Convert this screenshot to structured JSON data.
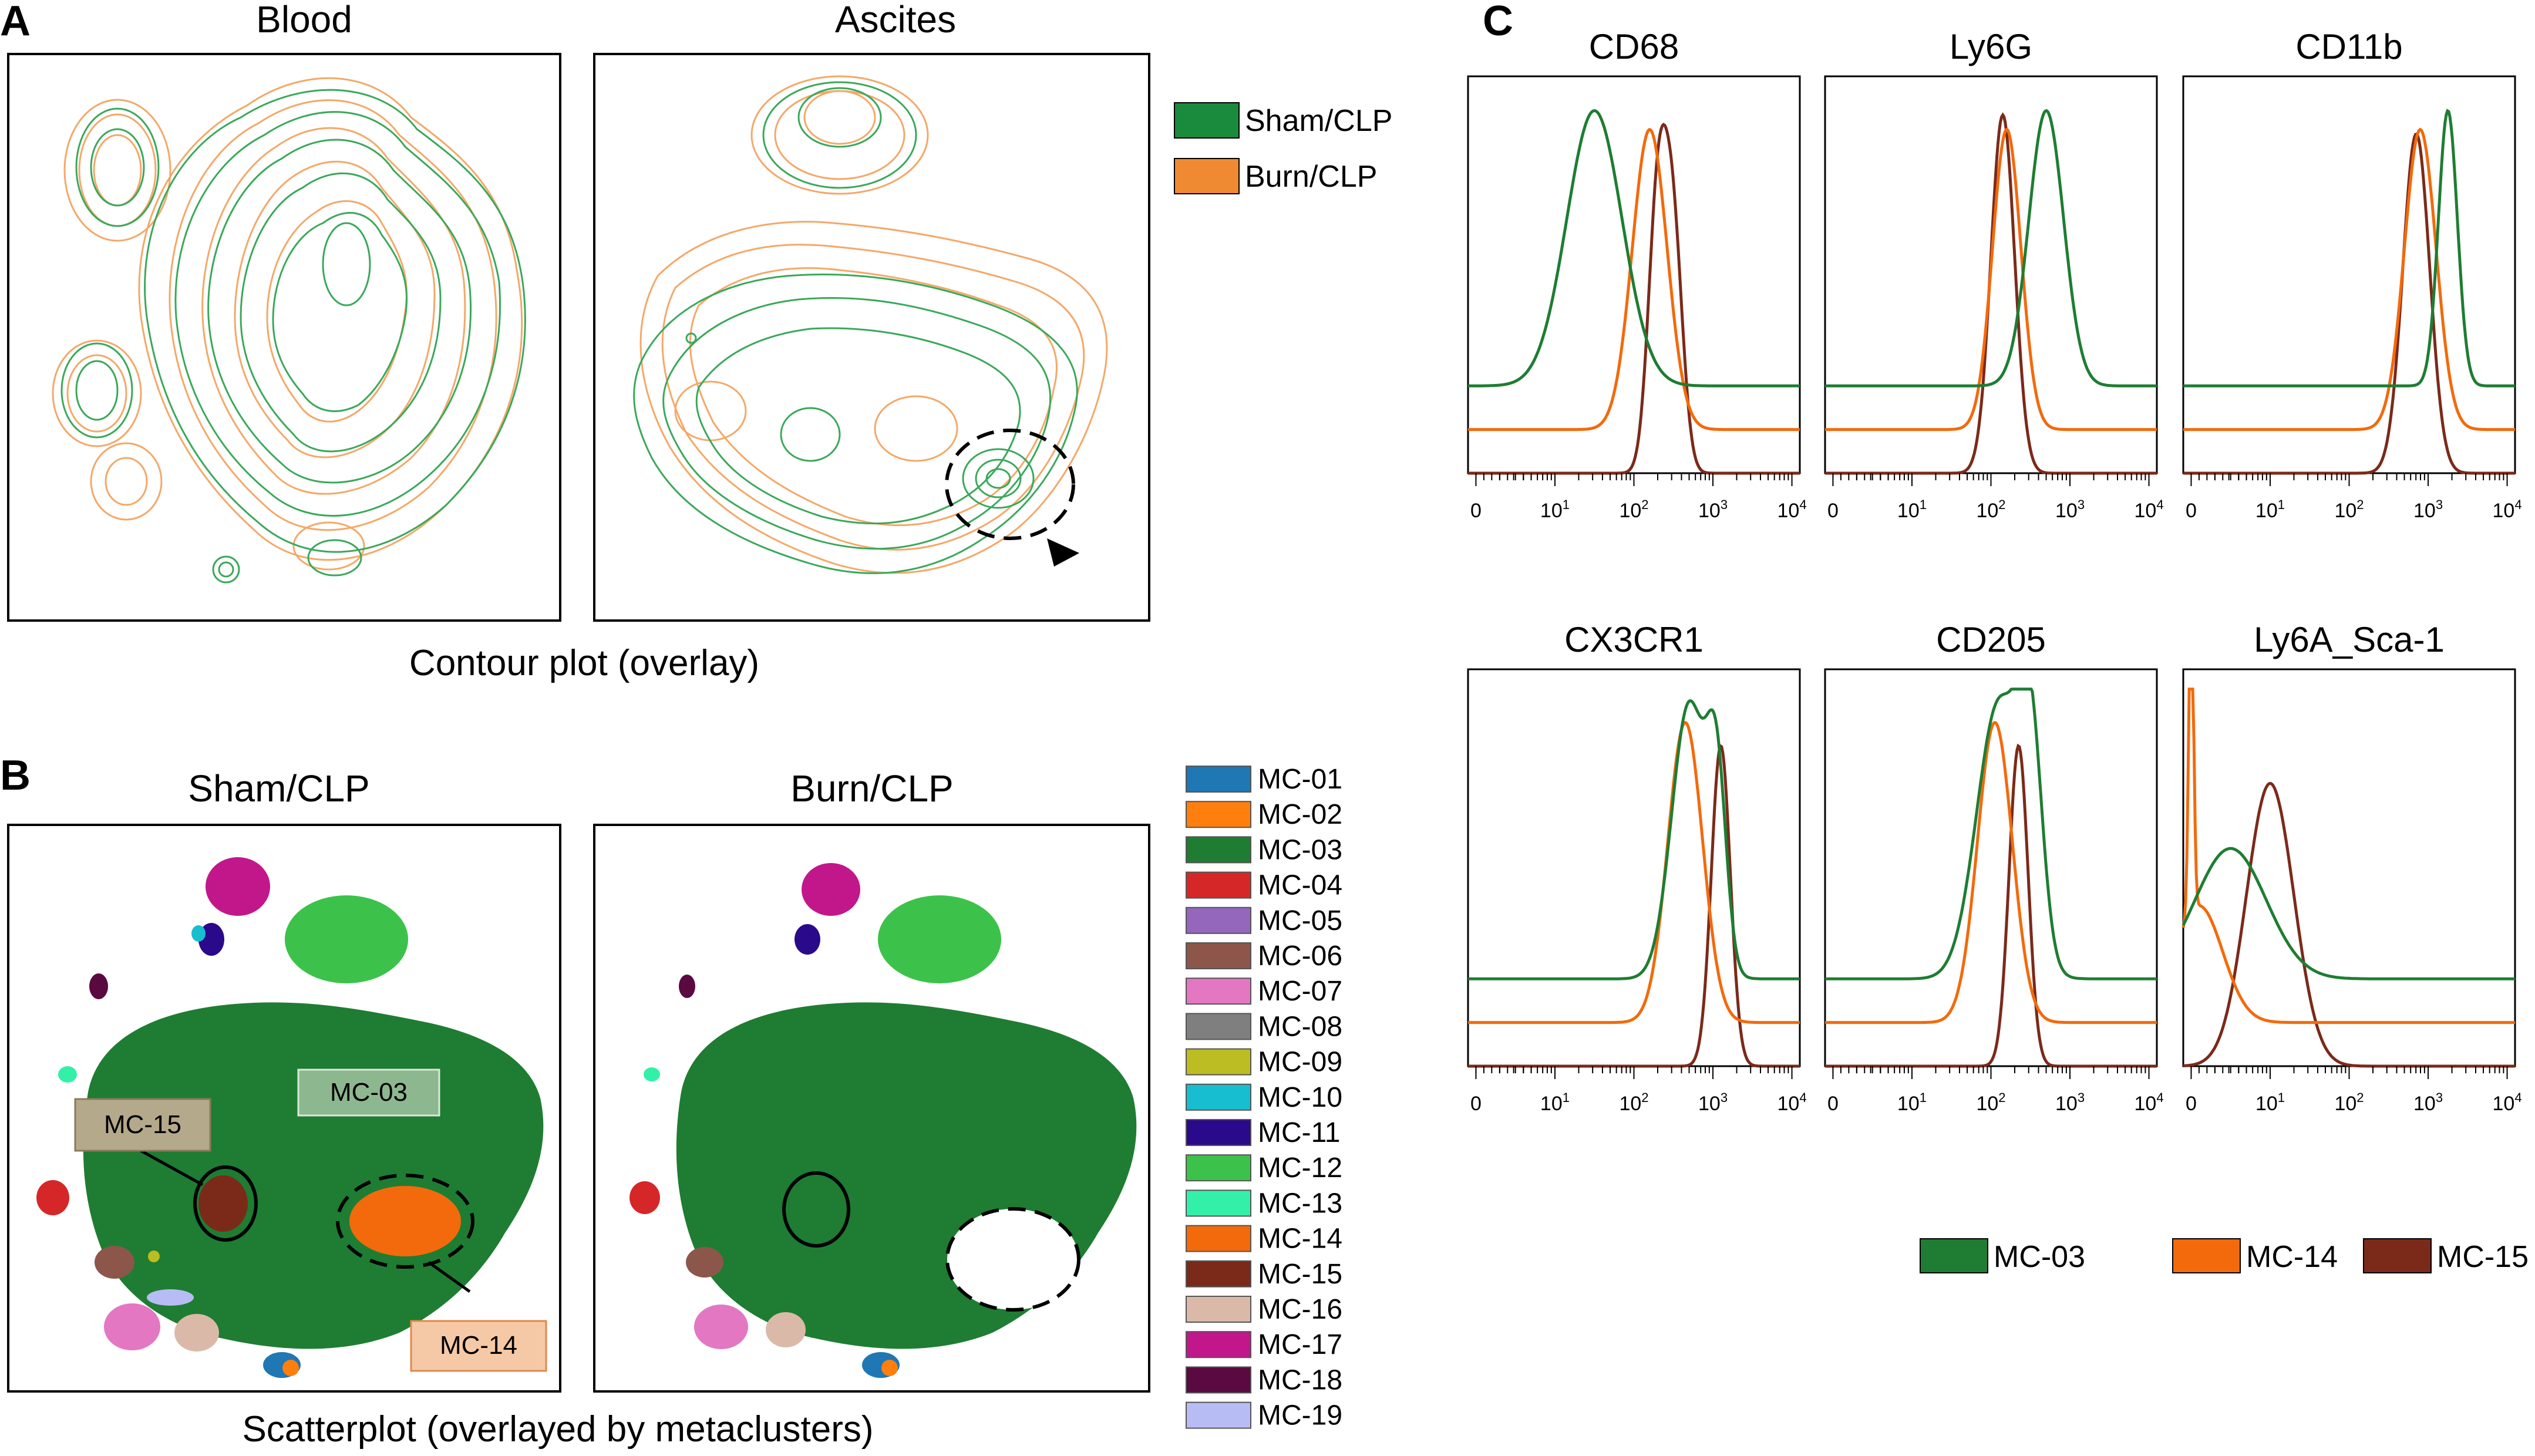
{
  "panel_labels": {
    "a": "A",
    "b": "B",
    "c": "C"
  },
  "panel_a": {
    "titles": [
      "Blood",
      "Ascites"
    ],
    "caption": "Contour plot (overlay)",
    "legend": [
      {
        "label": "Sham/CLP",
        "color": "#1a8a3c"
      },
      {
        "label": "Burn/CLP",
        "color": "#f08a32"
      }
    ]
  },
  "panel_b": {
    "titles": [
      "Sham/CLP",
      "Burn/CLP"
    ],
    "caption": "Scatterplot (overlayed by metaclusters)",
    "callouts": {
      "mc03": "MC-03",
      "mc15": "MC-15",
      "mc14": "MC-14"
    },
    "legend": [
      {
        "label": "MC-01",
        "color": "#1f77b4"
      },
      {
        "label": "MC-02",
        "color": "#ff7f0e"
      },
      {
        "label": "MC-03",
        "color": "#1e7d32"
      },
      {
        "label": "MC-04",
        "color": "#d62728"
      },
      {
        "label": "MC-05",
        "color": "#9467bd"
      },
      {
        "label": "MC-06",
        "color": "#8c564b"
      },
      {
        "label": "MC-07",
        "color": "#e377c2"
      },
      {
        "label": "MC-08",
        "color": "#7f7f7f"
      },
      {
        "label": "MC-09",
        "color": "#bcbd22"
      },
      {
        "label": "MC-10",
        "color": "#17becf"
      },
      {
        "label": "MC-11",
        "color": "#2a0a8a"
      },
      {
        "label": "MC-12",
        "color": "#3cc24a"
      },
      {
        "label": "MC-13",
        "color": "#33f0a8"
      },
      {
        "label": "MC-14",
        "color": "#f26a0c"
      },
      {
        "label": "MC-15",
        "color": "#7b2a1a"
      },
      {
        "label": "MC-16",
        "color": "#dbb9a8"
      },
      {
        "label": "MC-17",
        "color": "#c2178a"
      },
      {
        "label": "MC-18",
        "color": "#5a0a40"
      },
      {
        "label": "MC-19",
        "color": "#b8bcf4"
      }
    ]
  },
  "chart_data": {
    "type": "line",
    "title": "",
    "xlabel": "",
    "ylabel": "",
    "x_scale": "biexponential",
    "x_ticks": [
      {
        "base": "0",
        "exp": ""
      },
      {
        "base": "10",
        "exp": "1"
      },
      {
        "base": "10",
        "exp": "2"
      },
      {
        "base": "10",
        "exp": "3"
      },
      {
        "base": "10",
        "exp": "4"
      }
    ],
    "series_names": [
      "MC-03",
      "MC-14",
      "MC-15"
    ],
    "series_colors": [
      "#1e7d32",
      "#f26a0c",
      "#7b2a1a"
    ],
    "histograms": [
      {
        "marker": "CD68",
        "peaks": [
          [
            [
              1.5,
              0.95,
              0.35
            ]
          ],
          [
            [
              2.2,
              0.9,
              0.22
            ]
          ],
          [
            [
              2.3,
              0.7,
              0.12
            ],
            [
              2.5,
              0.6,
              0.12
            ]
          ]
        ],
        "baseline_offsets": [
          0.22,
          0.11,
          0.0
        ]
      },
      {
        "marker": "Ly6G",
        "peaks": [
          [
            [
              2.7,
              0.95,
              0.22
            ]
          ],
          [
            [
              2.2,
              0.9,
              0.18
            ]
          ],
          [
            [
              2.15,
              0.95,
              0.15
            ]
          ]
        ],
        "baseline_offsets": [
          0.22,
          0.11,
          0.0
        ]
      },
      {
        "marker": "CD11b",
        "peaks": [
          [
            [
              3.25,
              0.95,
              0.12
            ]
          ],
          [
            [
              2.9,
              0.9,
              0.2
            ]
          ],
          [
            [
              2.85,
              0.9,
              0.17
            ]
          ]
        ],
        "baseline_offsets": [
          0.22,
          0.11,
          0.0
        ]
      },
      {
        "marker": "CX3CR1",
        "peaks": [
          [
            [
              2.7,
              0.95,
              0.22
            ],
            [
              3.05,
              0.6,
              0.12
            ]
          ],
          [
            [
              2.65,
              0.9,
              0.22
            ]
          ],
          [
            [
              3.1,
              0.85,
              0.12
            ]
          ]
        ],
        "baseline_offsets": [
          0.22,
          0.11,
          0.0
        ]
      },
      {
        "marker": "CD205",
        "peaks": [
          [
            [
              2.1,
              0.95,
              0.28
            ],
            [
              2.5,
              0.7,
              0.15
            ]
          ],
          [
            [
              2.05,
              0.9,
              0.22
            ]
          ],
          [
            [
              2.35,
              0.85,
              0.12
            ]
          ]
        ],
        "baseline_offsets": [
          0.22,
          0.11,
          0.0
        ]
      },
      {
        "marker": "Ly6A_Sca-1",
        "peaks": [
          [
            [
              0.5,
              0.45,
              0.45
            ]
          ],
          [
            [
              0.1,
              0.35,
              0.3
            ],
            [
              0.0,
              1.0,
              0.03
            ]
          ],
          [
            [
              1.0,
              0.75,
              0.3
            ]
          ]
        ],
        "baseline_offsets": [
          0.22,
          0.11,
          0.0
        ]
      }
    ]
  }
}
